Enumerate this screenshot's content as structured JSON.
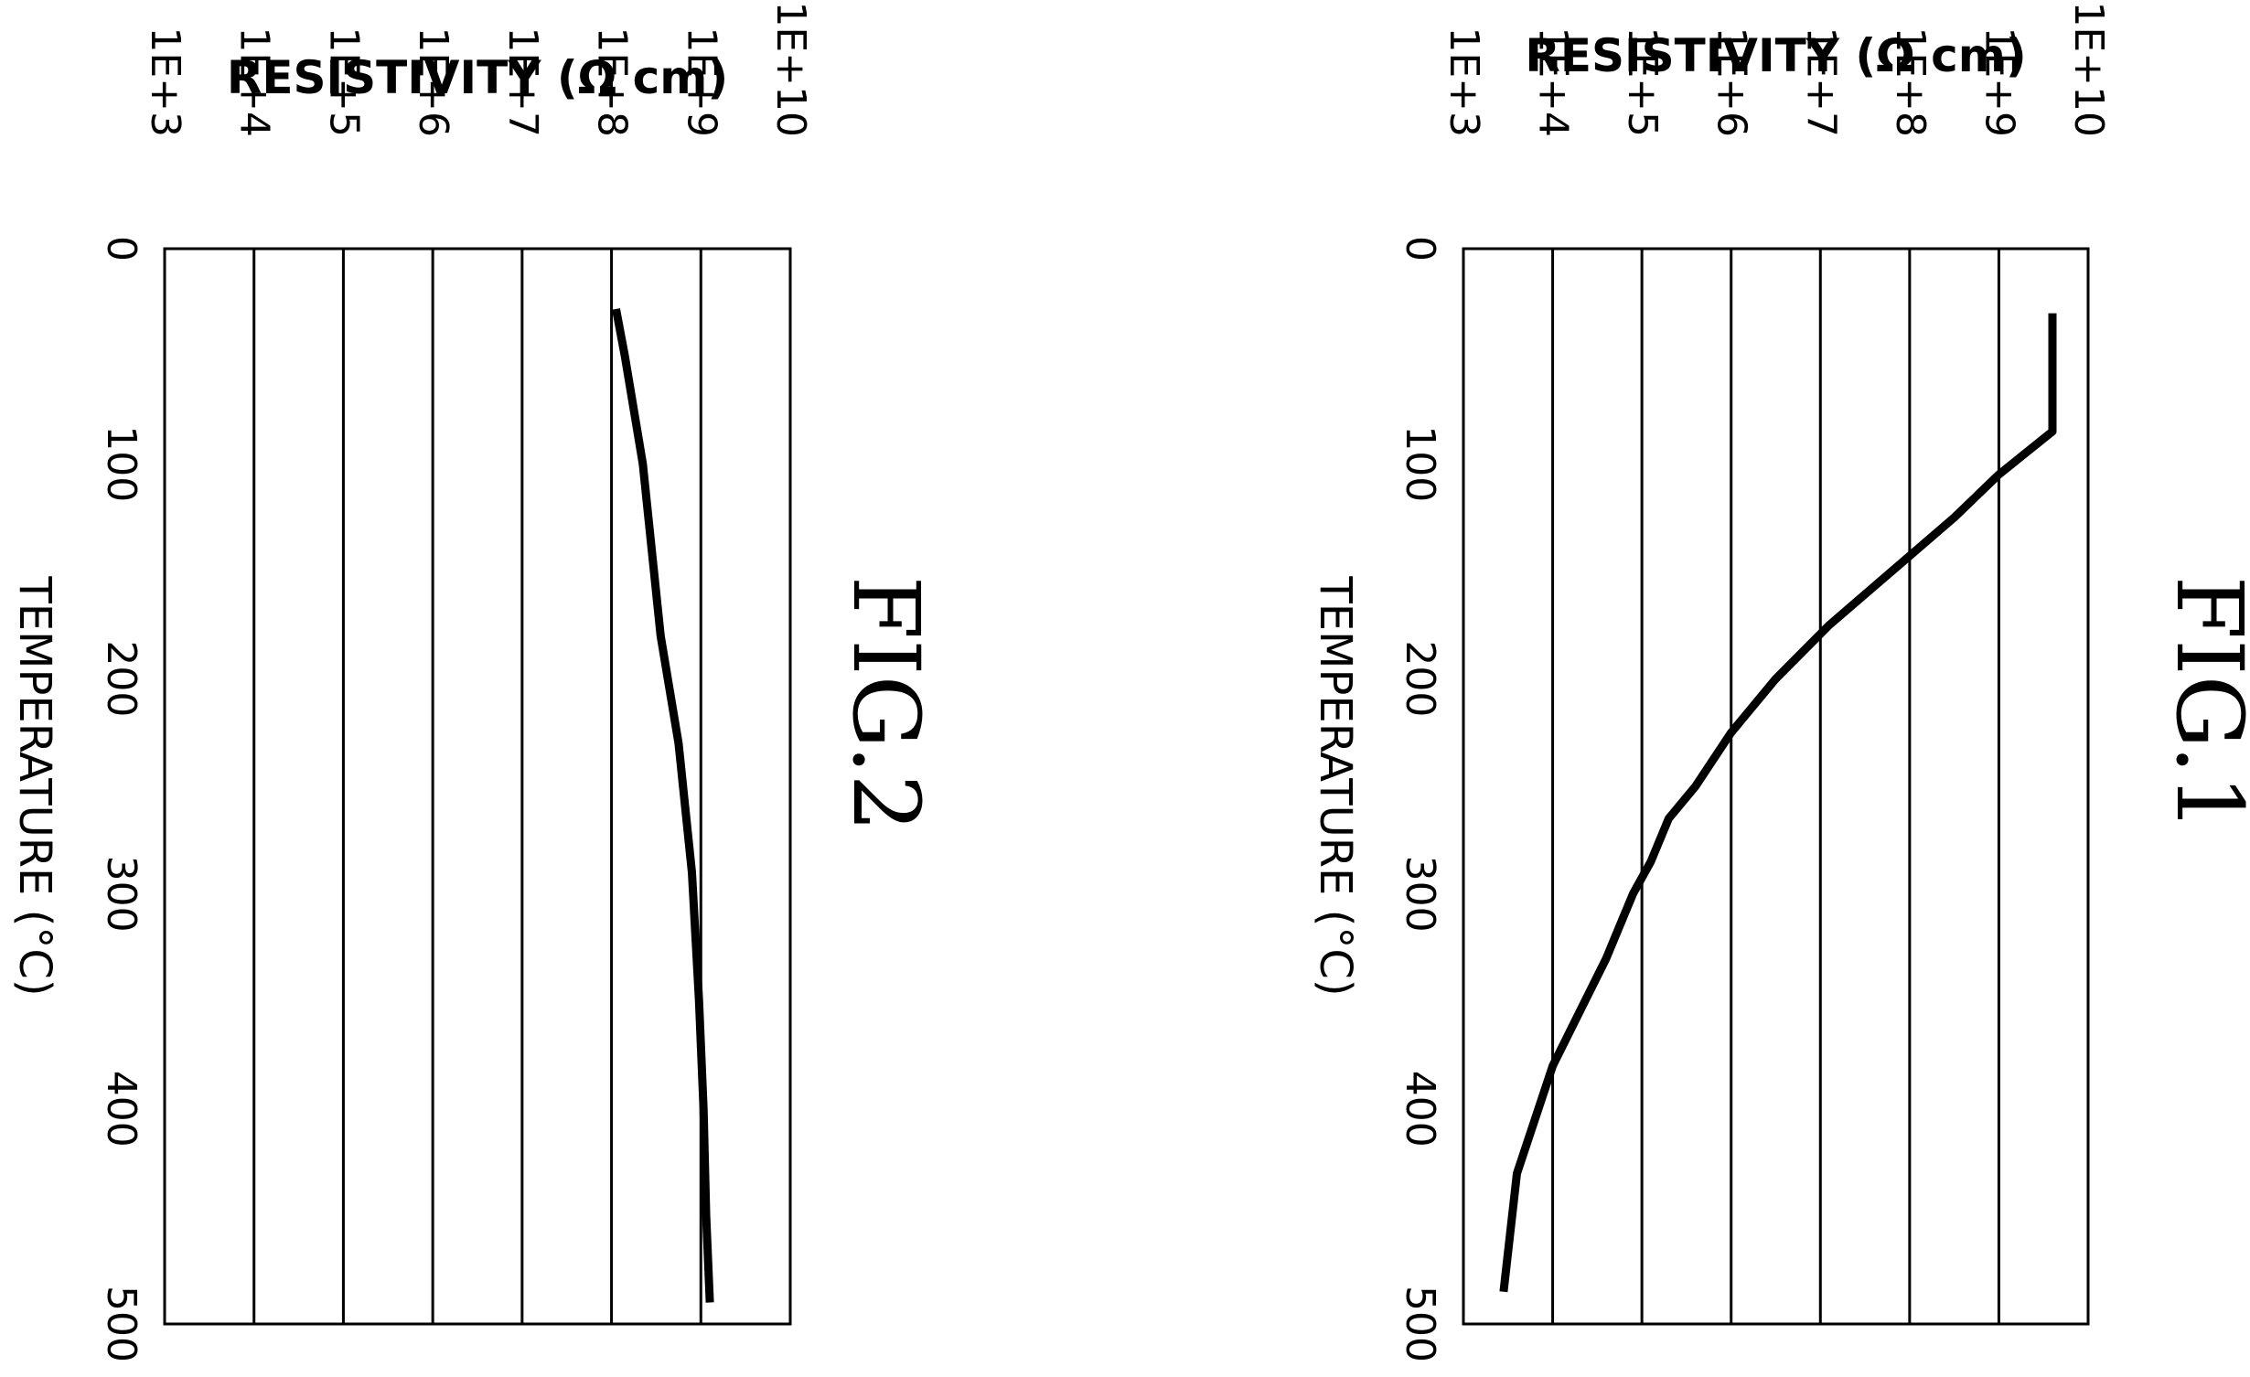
{
  "chart_data": [
    {
      "type": "line",
      "title": "FIG.1",
      "xlabel": "TEMPERATURE (°C)",
      "ylabel": "RESISTIVITY (Ω cm)",
      "xlim": [
        0,
        500
      ],
      "ylim_log10": [
        3,
        10
      ],
      "x_ticks": [
        "0",
        "100",
        "200",
        "300",
        "400",
        "500"
      ],
      "y_ticks": [
        "1E+3",
        "1E+4",
        "1E+5",
        "1E+6",
        "1E+7",
        "1E+8",
        "1E+9",
        "1E+10"
      ],
      "grid": true,
      "series": [
        {
          "x": [
            30,
            85,
            105,
            125,
            150,
            175,
            200,
            225,
            250,
            265,
            285,
            300,
            330,
            380,
            430,
            485
          ],
          "log10_y": [
            9.6,
            9.6,
            9.0,
            8.5,
            7.8,
            7.1,
            6.5,
            6.0,
            5.6,
            5.3,
            5.1,
            4.9,
            4.6,
            4.0,
            3.6,
            3.45
          ]
        }
      ]
    },
    {
      "type": "line",
      "title": "FIG.2",
      "xlabel": "TEMPERATURE (°C)",
      "ylabel": "RESISTIVITY (Ω cm)",
      "xlim": [
        0,
        500
      ],
      "ylim_log10": [
        3,
        10
      ],
      "x_ticks": [
        "0",
        "100",
        "200",
        "300",
        "400",
        "500"
      ],
      "y_ticks": [
        "1E+3",
        "1E+4",
        "1E+5",
        "1E+6",
        "1E+7",
        "1E+8",
        "1E+9",
        "1E+10"
      ],
      "grid": true,
      "series": [
        {
          "x": [
            28,
            50,
            100,
            180,
            230,
            290,
            350,
            400,
            450,
            490
          ],
          "log10_y": [
            8.05,
            8.15,
            8.35,
            8.55,
            8.75,
            8.9,
            8.98,
            9.03,
            9.06,
            9.1
          ]
        }
      ]
    }
  ]
}
